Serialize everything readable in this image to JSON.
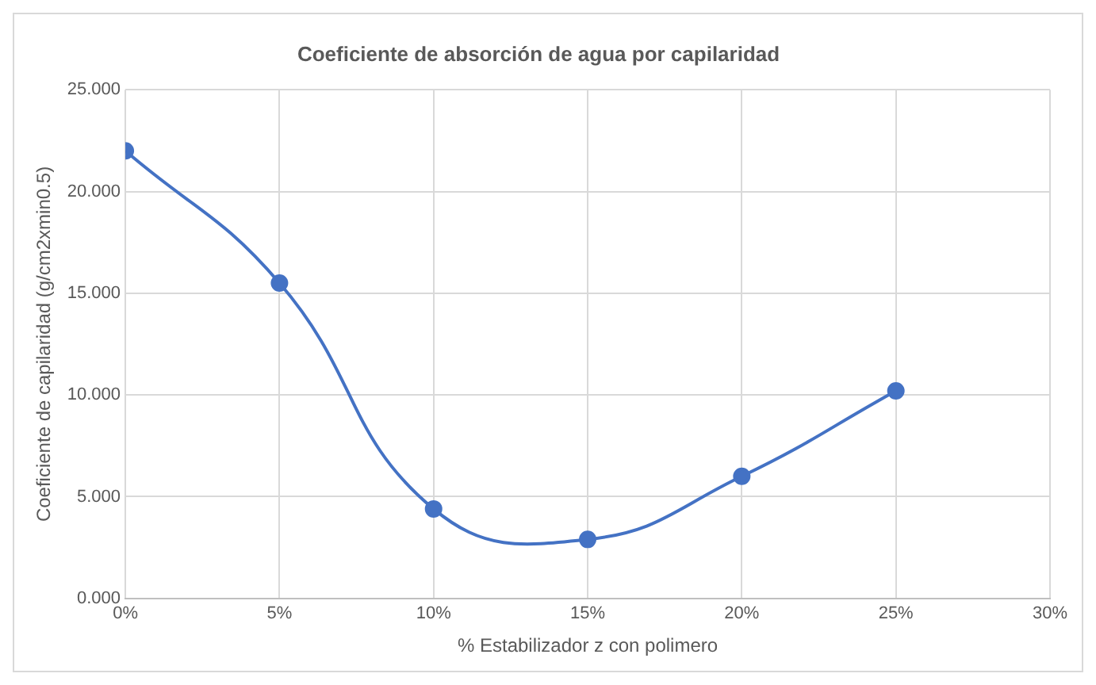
{
  "chart_data": {
    "type": "line",
    "title": "Coeficiente de absorción de agua por capilaridad",
    "xlabel": "% Estabilizador z con polimero",
    "ylabel": "Coeficiente de capilaridad (g/cm2xmin0.5)",
    "x": [
      0,
      5,
      10,
      15,
      20,
      25
    ],
    "series": [
      {
        "color": "#4472c4",
        "values": [
          22.0,
          15.5,
          4.4,
          2.9,
          6.0,
          10.2
        ]
      }
    ],
    "xlim": [
      0,
      30
    ],
    "xticks": [
      {
        "value": 0,
        "label": "0%"
      },
      {
        "value": 5,
        "label": "5%"
      },
      {
        "value": 10,
        "label": "10%"
      },
      {
        "value": 15,
        "label": "15%"
      },
      {
        "value": 20,
        "label": "20%"
      },
      {
        "value": 25,
        "label": "25%"
      },
      {
        "value": 30,
        "label": "30%"
      }
    ],
    "ylim": [
      0,
      25
    ],
    "yticks": [
      {
        "value": 0,
        "label": "0.000"
      },
      {
        "value": 5,
        "label": "5.000"
      },
      {
        "value": 10,
        "label": "10.000"
      },
      {
        "value": 15,
        "label": "15.000"
      },
      {
        "value": 20,
        "label": "20.000"
      },
      {
        "value": 25,
        "label": "25.000"
      }
    ],
    "grid": true,
    "marker": "circle",
    "line_style": "solid"
  }
}
